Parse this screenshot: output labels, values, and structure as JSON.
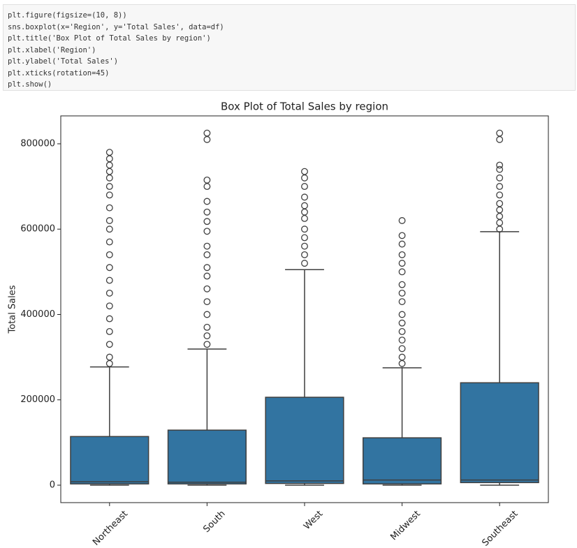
{
  "code": {
    "lines": [
      "plt.figure(figsize=(10, 8))",
      "sns.boxplot(x='Region', y='Total Sales', data=df)",
      "plt.title('Box Plot of Total Sales by region')",
      "plt.xlabel('Region')",
      "plt.ylabel('Total Sales')",
      "plt.xticks(rotation=45)",
      "plt.show()"
    ]
  },
  "chart_data": {
    "type": "box",
    "title": "Box Plot of Total Sales by region",
    "y_label": "Total Sales",
    "categories": [
      "Northeast",
      "South",
      "West",
      "Midwest",
      "Southeast"
    ],
    "color": "#3274a1",
    "edge_color": "#3f3f3f",
    "ylim": [
      -40900,
      865400
    ],
    "yticks": [
      0,
      200000,
      400000,
      600000,
      800000
    ],
    "boxes": [
      {
        "whislo": 0,
        "q1": 3000,
        "median": 8000,
        "q3": 114000,
        "whishi": 277000,
        "fliers": [
          780000,
          765000,
          750000,
          735000,
          720000,
          700000,
          680000,
          650000,
          620000,
          600000,
          570000,
          540000,
          510000,
          480000,
          450000,
          420000,
          390000,
          360000,
          330000,
          300000,
          285000
        ]
      },
      {
        "whislo": 0,
        "q1": 3000,
        "median": 7000,
        "q3": 129000,
        "whishi": 319000,
        "fliers": [
          825000,
          810000,
          715000,
          700000,
          665000,
          640000,
          618000,
          595000,
          560000,
          540000,
          510000,
          490000,
          460000,
          430000,
          400000,
          370000,
          350000,
          330000
        ]
      },
      {
        "whislo": 0,
        "q1": 4000,
        "median": 10000,
        "q3": 206000,
        "whishi": 505000,
        "fliers": [
          735000,
          720000,
          700000,
          675000,
          655000,
          640000,
          625000,
          600000,
          580000,
          560000,
          540000,
          520000
        ]
      },
      {
        "whislo": 0,
        "q1": 3000,
        "median": 12000,
        "q3": 111000,
        "whishi": 275000,
        "fliers": [
          620000,
          585000,
          565000,
          540000,
          520000,
          500000,
          470000,
          450000,
          430000,
          400000,
          380000,
          360000,
          340000,
          320000,
          300000,
          285000
        ]
      },
      {
        "whislo": 0,
        "q1": 6000,
        "median": 12000,
        "q3": 240000,
        "whishi": 594000,
        "fliers": [
          825000,
          810000,
          750000,
          740000,
          720000,
          700000,
          680000,
          660000,
          645000,
          630000,
          615000,
          600000
        ]
      }
    ]
  }
}
